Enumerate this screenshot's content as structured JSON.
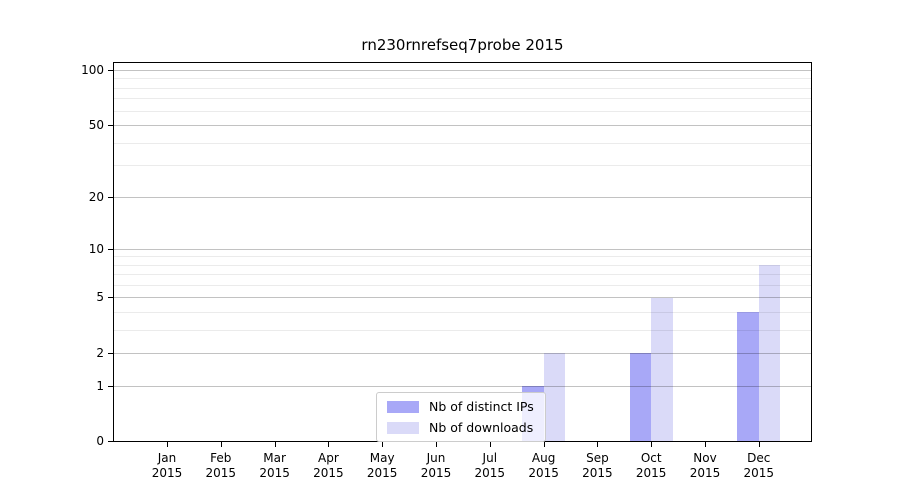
{
  "chart_data": {
    "type": "bar",
    "title": "rn230rnrefseq7probe 2015",
    "year": "2015",
    "months": [
      "Jan",
      "Feb",
      "Mar",
      "Apr",
      "May",
      "Jun",
      "Jul",
      "Aug",
      "Sep",
      "Oct",
      "Nov",
      "Dec"
    ],
    "series": [
      {
        "name": "Nb of distinct IPs",
        "color": "#a8a8f7",
        "values": [
          0,
          0,
          0,
          0,
          0,
          0,
          0,
          1,
          0,
          2,
          0,
          4
        ]
      },
      {
        "name": "Nb of downloads",
        "color": "#dadaf8",
        "values": [
          0,
          0,
          0,
          0,
          0,
          0,
          0,
          2,
          0,
          5,
          0,
          8
        ]
      }
    ],
    "yscale": "log1p",
    "ylim": [
      0,
      110
    ],
    "ytick_labels": [
      "0",
      "1",
      "2",
      "5",
      "10",
      "20",
      "50",
      "100"
    ],
    "ytick_values": [
      0,
      1,
      2,
      5,
      10,
      20,
      50,
      100
    ],
    "minor_ytick_values": [
      3,
      4,
      6,
      7,
      8,
      9,
      30,
      40,
      60,
      70,
      80,
      90
    ],
    "grid": "horizontal",
    "legend_position": "lower center",
    "xlabel": "",
    "ylabel": ""
  },
  "colors": {
    "ips_bar": "#a8a8f7",
    "downloads_bar": "#dadaf8",
    "grid_major": "rgba(0,0,0,0.24)",
    "grid_minor": "rgba(0,0,0,0.08)",
    "spine": "#000000",
    "legend_border": "#cccccc",
    "legend_background": "rgba(255,255,255,0.8)"
  }
}
